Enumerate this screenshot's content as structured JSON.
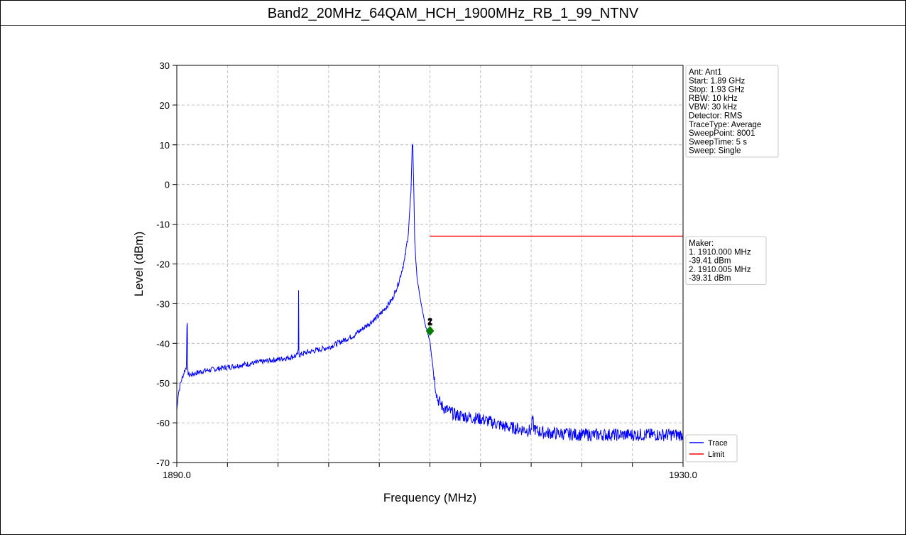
{
  "title": "Band2_20MHz_64QAM_HCH_1900MHz_RB_1_99_NTNV",
  "colors": {
    "trace": "#0000ff",
    "limit": "#ff0000",
    "marker": "#008000",
    "grid": "#b0b0b0"
  },
  "info_box": [
    "Ant: Ant1",
    "Start: 1.89 GHz",
    "Stop: 1.93 GHz",
    "RBW: 10 kHz",
    "VBW: 30 kHz",
    "Detector: RMS",
    "TraceType: Average",
    "SweepPoint: 8001",
    "SweepTime: 5 s",
    "Sweep: Single"
  ],
  "marker_box": [
    "Maker:",
    "1. 1910.000 MHz",
    "   -39.41 dBm",
    "2. 1910.005 MHz",
    "   -39.31 dBm"
  ],
  "chart_data": {
    "type": "line",
    "title": "",
    "xlabel": "Frequency (MHz)",
    "ylabel": "Level (dBm)",
    "xlim": [
      1890.0,
      1930.0
    ],
    "ylim": [
      -70,
      30
    ],
    "x_tick_labels": [
      "1890.0",
      "1930.0"
    ],
    "x_minor_ticks": [
      1894,
      1898,
      1902,
      1906,
      1910,
      1914,
      1918,
      1922,
      1926
    ],
    "y_ticks": [
      30,
      20,
      10,
      0,
      -10,
      -20,
      -30,
      -40,
      -50,
      -60,
      -70
    ],
    "grid": true,
    "legend_position": "bottom-right",
    "series": [
      {
        "name": "Trace",
        "x": [
          1890.0,
          1890.1,
          1890.3,
          1890.6,
          1890.75,
          1890.8,
          1890.83,
          1890.86,
          1890.9,
          1891.0,
          1892.0,
          1894.0,
          1896.0,
          1898.0,
          1899.0,
          1899.5,
          1899.6,
          1899.62,
          1899.65,
          1899.7,
          1900.0,
          1902.0,
          1904.0,
          1906.0,
          1907.0,
          1907.5,
          1908.0,
          1908.3,
          1908.5,
          1908.6,
          1908.65,
          1908.75,
          1908.8,
          1908.9,
          1909.0,
          1909.3,
          1909.6,
          1910.0,
          1910.2,
          1910.4,
          1910.6,
          1911.0,
          1912.0,
          1914.0,
          1916.0,
          1918.0,
          1918.1,
          1918.2,
          1918.4,
          1919.0,
          1922.0,
          1926.0,
          1930.0
        ],
        "y": [
          -57,
          -53,
          -50,
          -47,
          -46,
          -35,
          -35.5,
          -46,
          -47.5,
          -48,
          -47,
          -46,
          -45,
          -44,
          -43.5,
          -43,
          -42,
          -26.5,
          -42,
          -43,
          -42.5,
          -41,
          -38,
          -33,
          -29,
          -25,
          -19,
          -12,
          -2,
          10,
          10,
          -5,
          -14,
          -20,
          -24,
          -30,
          -35,
          -39.41,
          -45,
          -50,
          -54,
          -56,
          -58,
          -59,
          -61,
          -62,
          -59,
          -61,
          -62,
          -62.5,
          -63,
          -63,
          -63
        ]
      },
      {
        "name": "Limit",
        "x": [
          1910.0,
          1930.0
        ],
        "y": [
          -13,
          -13
        ]
      }
    ],
    "markers": [
      {
        "label": "1",
        "x": 1910.0,
        "y": -39.41
      },
      {
        "label": "2",
        "x": 1910.005,
        "y": -39.31
      }
    ]
  }
}
